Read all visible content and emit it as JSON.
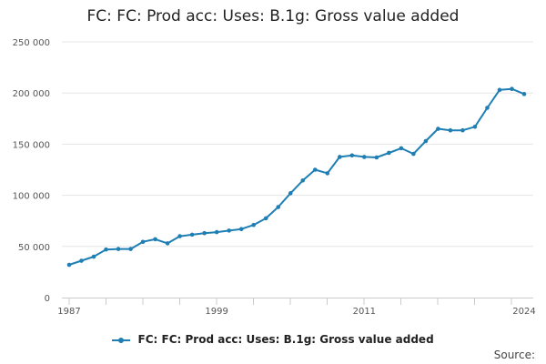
{
  "header": {
    "title": "FC: FC: Prod acc: Uses: B.1g: Gross value added"
  },
  "footer": {
    "source_label": "Source:"
  },
  "colors": {
    "series": "#1f7fb4",
    "grid": "#e6e6e6",
    "axis": "#cccccc"
  },
  "chart_data": {
    "type": "line",
    "title": "FC: FC: Prod acc: Uses: B.1g: Gross value added",
    "xlabel": "",
    "ylabel": "",
    "xlim": [
      1987,
      2024
    ],
    "ylim": [
      0,
      250000
    ],
    "x_ticks": [
      1987,
      1999,
      2011,
      2024
    ],
    "y_ticks": [
      0,
      50000,
      100000,
      150000,
      200000,
      250000
    ],
    "y_tick_labels": [
      "0",
      "50 000",
      "100 000",
      "150 000",
      "200 000",
      "250 000"
    ],
    "grid": true,
    "legend": "bottom",
    "series": [
      {
        "name": "FC: FC: Prod acc: Uses: B.1g: Gross value added",
        "x": [
          1987,
          1988,
          1989,
          1990,
          1991,
          1992,
          1993,
          1994,
          1995,
          1996,
          1997,
          1998,
          1999,
          2000,
          2001,
          2002,
          2003,
          2004,
          2005,
          2006,
          2007,
          2008,
          2009,
          2010,
          2011,
          2012,
          2013,
          2014,
          2015,
          2016,
          2017,
          2018,
          2019,
          2020,
          2021,
          2022,
          2023,
          2024
        ],
        "values": [
          32000,
          36000,
          40000,
          47000,
          47500,
          47500,
          54500,
          57000,
          53000,
          60000,
          61500,
          63000,
          64000,
          65500,
          67000,
          71000,
          77500,
          88500,
          102000,
          114500,
          125000,
          121500,
          137500,
          139000,
          137500,
          137000,
          141500,
          146000,
          140500,
          153000,
          165000,
          163500,
          163500,
          167000,
          185500,
          203000,
          204000,
          199000
        ]
      }
    ]
  }
}
